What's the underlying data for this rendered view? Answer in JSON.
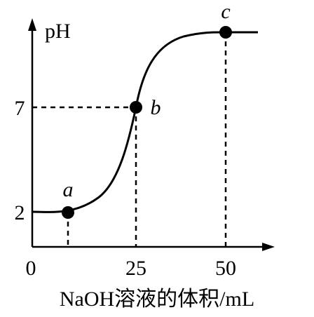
{
  "chart_data": {
    "type": "line",
    "title": "",
    "xlabel": "NaOH溶液的体积/mL",
    "ylabel": "pH",
    "x_ticks": [
      "0",
      "25",
      "50"
    ],
    "y_ticks": [
      "2",
      "7"
    ],
    "xlim": [
      0,
      60
    ],
    "ylim": [
      0,
      12
    ],
    "grid": false,
    "legend": "none",
    "series": [
      {
        "x": [
          0,
          4,
          8,
          12,
          16,
          20,
          22,
          24,
          25,
          26,
          28,
          30,
          34,
          40,
          46,
          50,
          55,
          58
        ],
        "y": [
          2.0,
          2.0,
          2.1,
          2.4,
          2.9,
          3.8,
          4.6,
          6.0,
          7.0,
          8.1,
          9.6,
          10.3,
          10.9,
          11.2,
          11.3,
          11.3,
          11.3,
          11.3
        ]
      }
    ],
    "points": [
      {
        "label": "a",
        "x": 8,
        "y": 2.1
      },
      {
        "label": "b",
        "x": 25,
        "y": 7.0
      },
      {
        "label": "c",
        "x": 50,
        "y": 11.3
      }
    ]
  }
}
